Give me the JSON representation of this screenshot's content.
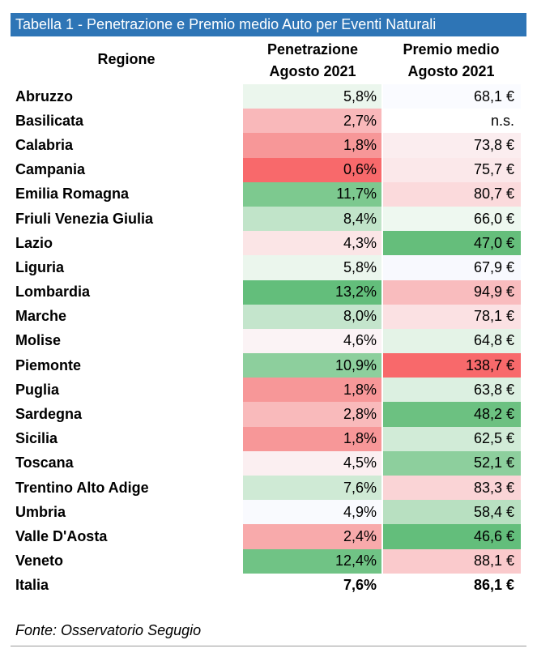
{
  "title": "Tabella 1 - Penetrazione e Premio medio Auto per Eventi Naturali",
  "headers": {
    "region": "Regione",
    "penetration_line1": "Penetrazione",
    "penetration_line2": "Agosto 2021",
    "premium_line1": "Premio medio",
    "premium_line2": "Agosto 2021"
  },
  "rows": [
    {
      "region": "Abruzzo",
      "penetration": "5,8%",
      "premium": "68,1 €",
      "pen_color": "#ebf6ed",
      "prem_color": "#fafbff"
    },
    {
      "region": "Basilicata",
      "penetration": "2,7%",
      "premium": "n.s.",
      "pen_color": "#f9b8ba",
      "prem_color": "#ffffff"
    },
    {
      "region": "Calabria",
      "penetration": "1,8%",
      "premium": "73,8 €",
      "pen_color": "#f79798",
      "prem_color": "#fbedef"
    },
    {
      "region": "Campania",
      "penetration": "0,6%",
      "premium": "75,7 €",
      "pen_color": "#f8696b",
      "prem_color": "#fbe8ea"
    },
    {
      "region": "Emilia Romagna",
      "penetration": "11,7%",
      "premium": "80,7 €",
      "pen_color": "#7dc98f",
      "prem_color": "#fbdadc"
    },
    {
      "region": "Friuli Venezia Giulia",
      "penetration": "8,4%",
      "premium": "66,0 €",
      "pen_color": "#c1e4c9",
      "prem_color": "#eef8f0"
    },
    {
      "region": "Lazio",
      "penetration": "4,3%",
      "premium": "47,0 €",
      "pen_color": "#fbe5e6",
      "prem_color": "#65be7b"
    },
    {
      "region": "Liguria",
      "penetration": "5,8%",
      "premium": "67,9 €",
      "pen_color": "#ebf6ed",
      "prem_color": "#f8f9fe"
    },
    {
      "region": "Lombardia",
      "penetration": "13,2%",
      "premium": "94,9 €",
      "pen_color": "#63be7b",
      "prem_color": "#f9bcbe"
    },
    {
      "region": "Marche",
      "penetration": "8,0%",
      "premium": "78,1 €",
      "pen_color": "#c4e5cc",
      "prem_color": "#fbe1e3"
    },
    {
      "region": "Molise",
      "penetration": "4,6%",
      "premium": "64,8 €",
      "pen_color": "#fbf3f5",
      "prem_color": "#e4f3e7"
    },
    {
      "region": "Piemonte",
      "penetration": "10,9%",
      "premium": "138,7 €",
      "pen_color": "#8dcf9d",
      "prem_color": "#f8696b"
    },
    {
      "region": "Puglia",
      "penetration": "1,8%",
      "premium": "63,8 €",
      "pen_color": "#f79798",
      "prem_color": "#dcf0e1"
    },
    {
      "region": "Sardegna",
      "penetration": "2,8%",
      "premium": "48,2 €",
      "pen_color": "#f9babb",
      "prem_color": "#6cc181"
    },
    {
      "region": "Sicilia",
      "penetration": "1,8%",
      "premium": "62,5 €",
      "pen_color": "#f79798",
      "prem_color": "#d1ebd7"
    },
    {
      "region": "Toscana",
      "penetration": "4,5%",
      "premium": "52,1 €",
      "pen_color": "#fbeff1",
      "prem_color": "#8dcf9d"
    },
    {
      "region": "Trentino Alto Adige",
      "penetration": "7,6%",
      "premium": "83,3 €",
      "pen_color": "#cfeaD5",
      "prem_color": "#fad4d6"
    },
    {
      "region": "Umbria",
      "penetration": "4,9%",
      "premium": "58,4 €",
      "pen_color": "#f9fafe",
      "prem_color": "#b8e0c1"
    },
    {
      "region": "Valle D'Aosta",
      "penetration": "2,4%",
      "premium": "46,6 €",
      "pen_color": "#f8aaab",
      "prem_color": "#63be7b"
    },
    {
      "region": "Veneto",
      "penetration": "12,4%",
      "premium": "88,1 €",
      "pen_color": "#70c385",
      "prem_color": "#facacc"
    }
  ],
  "total": {
    "region": "Italia",
    "penetration": "7,6%",
    "premium": "86,1 €"
  },
  "source": "Fonte: Osservatorio Segugio",
  "colors": {
    "title_bg": "#2e75b6",
    "title_text": "#ffffff"
  }
}
